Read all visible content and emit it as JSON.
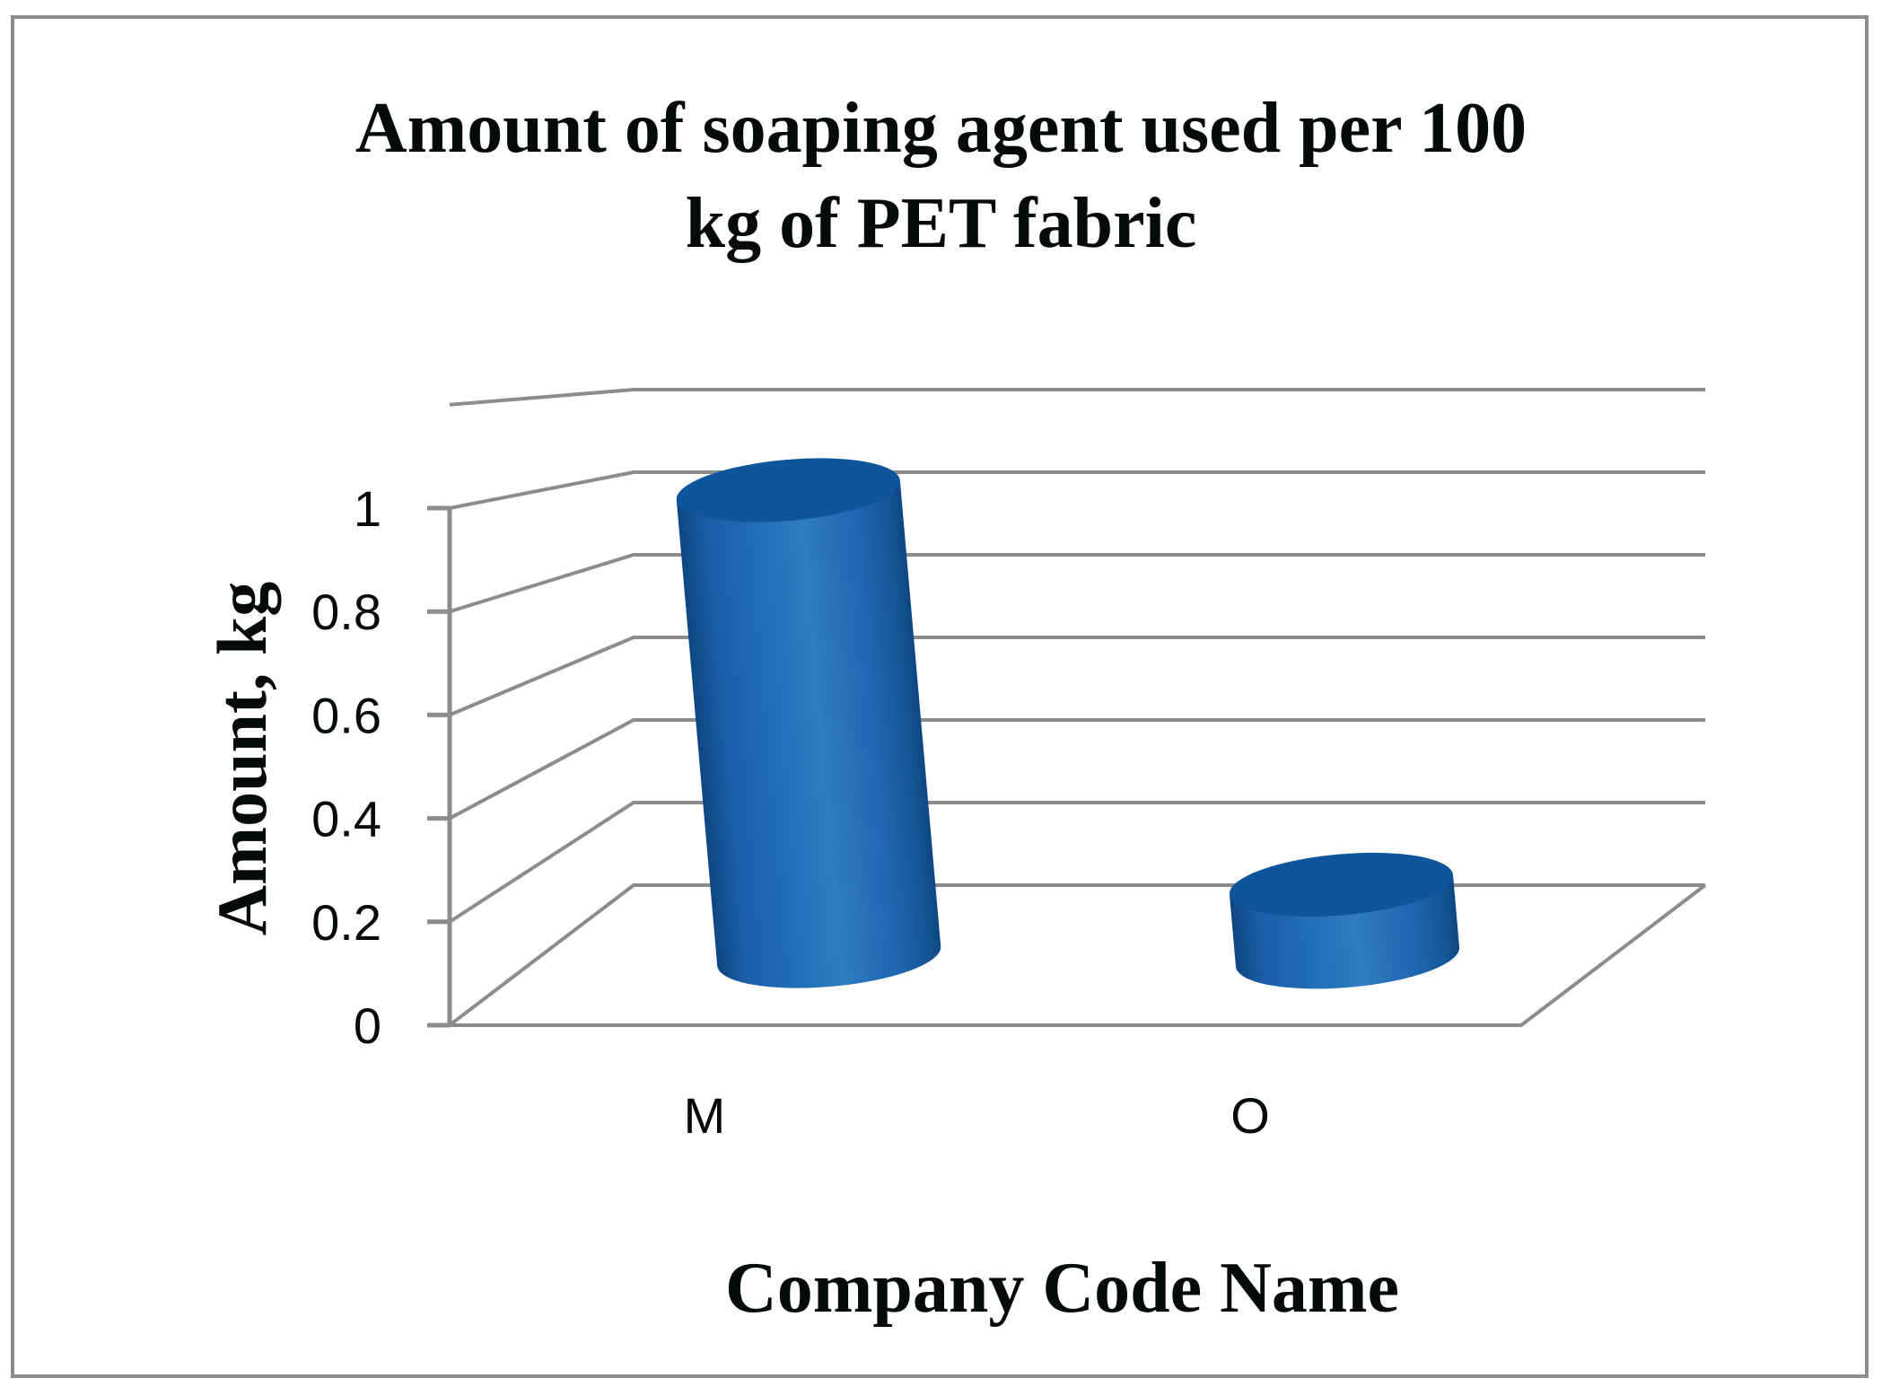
{
  "chart_data": {
    "type": "bar",
    "style": "3d-cylinder",
    "title": "Amount of soaping agent used per 100 kg of PET fabric",
    "title_lines": [
      "Amount of soaping agent used per 100",
      "kg of PET fabric"
    ],
    "xlabel": "Company Code Name",
    "ylabel": "Amount, kg",
    "categories": [
      "M",
      "O"
    ],
    "values": [
      1.0,
      0.15
    ],
    "ylim": [
      0,
      1.2
    ],
    "yticks": [
      "0",
      "0.2",
      "0.4",
      "0.6",
      "0.8",
      "1"
    ],
    "grid": true,
    "legend": null,
    "colors": {
      "bar": "#1f65b0",
      "bar_dark": "#0f4f94",
      "bar_light": "#3a80c4",
      "bar_top": "#0f559c",
      "grid": "#8c8c8c",
      "text": "#050a0a",
      "border": "#8c8c8c"
    }
  }
}
